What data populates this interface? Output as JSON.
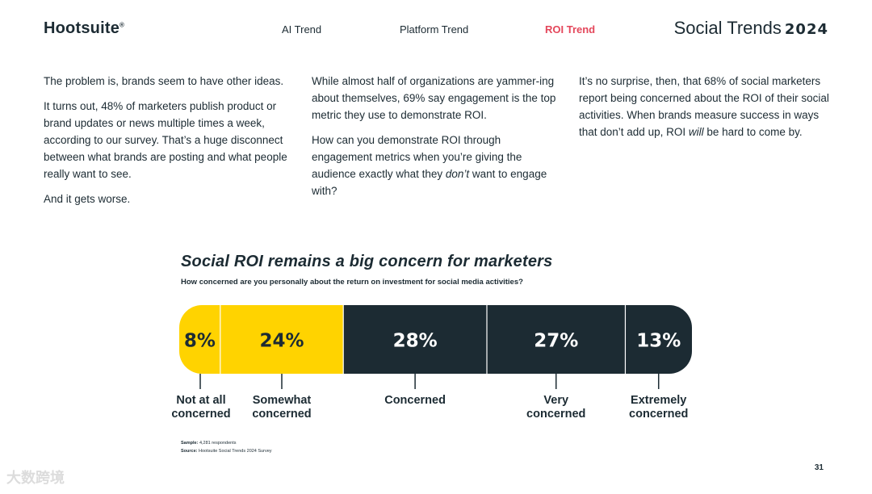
{
  "header": {
    "logo": "Hootsuite",
    "logo_mark": "®",
    "nav": [
      {
        "label": "AI Trend",
        "active": false
      },
      {
        "label": "Platform Trend",
        "active": false
      },
      {
        "label": "ROI Trend",
        "active": true
      }
    ],
    "brand_title": "Social Trends",
    "brand_year": "2024"
  },
  "body": {
    "col1": [
      "The problem is, brands seem to have other ideas.",
      "It turns out, 48% of marketers publish product or brand updates or news multiple times a week, according to our survey. That’s a huge disconnect between what brands are posting and what people really want to see.",
      "And it gets worse."
    ],
    "col2": {
      "p1": "While almost half of organizations are yammer-ing about themselves, 69% say engagement is the top metric they use to demonstrate ROI.",
      "p2_a": "How can you demonstrate ROI through engagement metrics when you’re giving the audience exactly what they ",
      "p2_em": "don’t",
      "p2_b": " want to engage with?"
    },
    "col3": {
      "a": "It’s no surprise, then, that 68% of social marketers report being concerned about the ROI of their social activities. When brands measure success in ways that don’t add up, ROI ",
      "em": "will",
      "b": " be hard to come by."
    }
  },
  "chart_data": {
    "type": "bar",
    "orientation": "horizontal-stacked",
    "title": "Social ROI remains a big concern for marketers",
    "subtitle": "How concerned are you personally about the return on investment for social media activities?",
    "categories": [
      "Not at all concerned",
      "Somewhat concerned",
      "Concerned",
      "Very concerned",
      "Extremely concerned"
    ],
    "label_lines": [
      [
        "Not at all",
        "concerned"
      ],
      [
        "Somewhat",
        "concerned"
      ],
      [
        "Concerned"
      ],
      [
        "Very",
        "concerned"
      ],
      [
        "Extremely",
        "concerned"
      ]
    ],
    "values": [
      8,
      24,
      28,
      27,
      13
    ],
    "value_labels": [
      "8%",
      "24%",
      "28%",
      "27%",
      "13%"
    ],
    "colors": [
      "#ffd300",
      "#ffd300",
      "#1c2b33",
      "#1c2b33",
      "#1c2b33"
    ],
    "text_colors": [
      "#1c2b33",
      "#1c2b33",
      "#ffffff",
      "#ffffff",
      "#ffffff"
    ]
  },
  "footnotes": {
    "sample_label": "Sample:",
    "sample_value": "4,281 respondents",
    "source_label": "Source:",
    "source_value": "Hootsuite Social Trends 2024 Survey"
  },
  "page_number": "31",
  "watermark": "大数跨境"
}
